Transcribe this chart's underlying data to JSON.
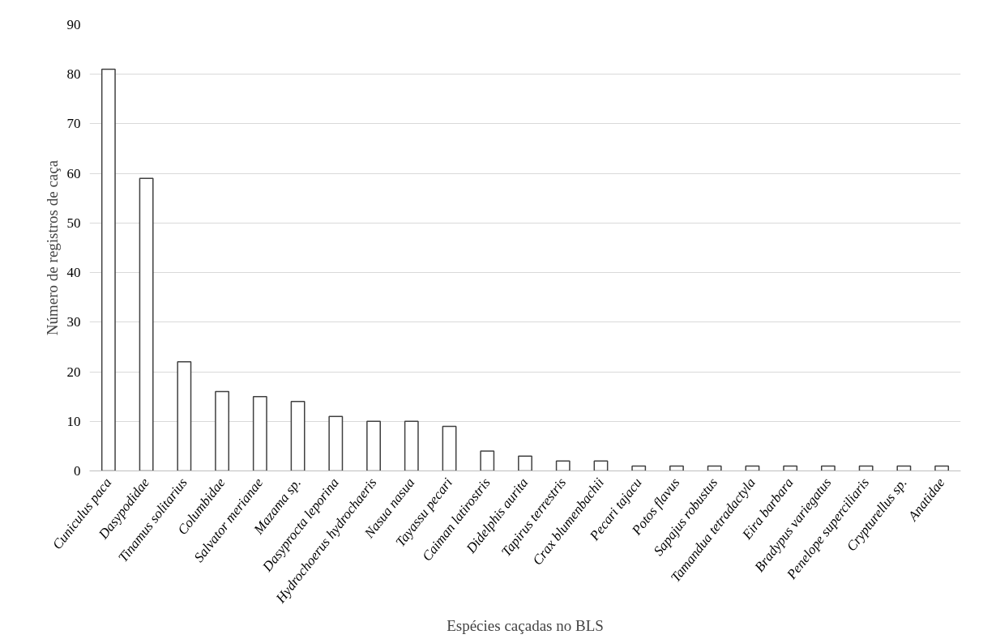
{
  "chart_data": {
    "type": "bar",
    "xlabel": "Espécies caçadas no BLS",
    "ylabel": "Número de registros de caça",
    "categories": [
      "Cuniculus paca",
      "Dasypodidae",
      "Tinamus solitarius",
      "Columbidae",
      "Salvator merianae",
      "Mazama sp.",
      "Dasyprocta leporina",
      "Hydrochoerus hydrochaeris",
      "Nasua nasua",
      "Tayassu pecari",
      "Caiman latirostris",
      "Didelphis aurita",
      "Tapirus terrestris",
      "Crax blumenbachii",
      "Pecari tajacu",
      "Potos flavus",
      "Sapajus robustus",
      "Tamandua tetradactyla",
      "Eira barbara",
      "Bradypus variegatus",
      "Penelope superciliaris",
      "Crypturellus sp.",
      "Anatidae"
    ],
    "values": [
      81,
      59,
      22,
      16,
      15,
      14,
      11,
      10,
      10,
      9,
      4,
      3,
      2,
      2,
      1,
      1,
      1,
      1,
      1,
      1,
      1,
      1,
      1
    ],
    "color": "#ffffff",
    "ylim": [
      0,
      90
    ],
    "yticks": [
      0,
      10,
      20,
      30,
      40,
      50,
      60,
      70,
      80,
      90
    ],
    "grid": "y"
  }
}
